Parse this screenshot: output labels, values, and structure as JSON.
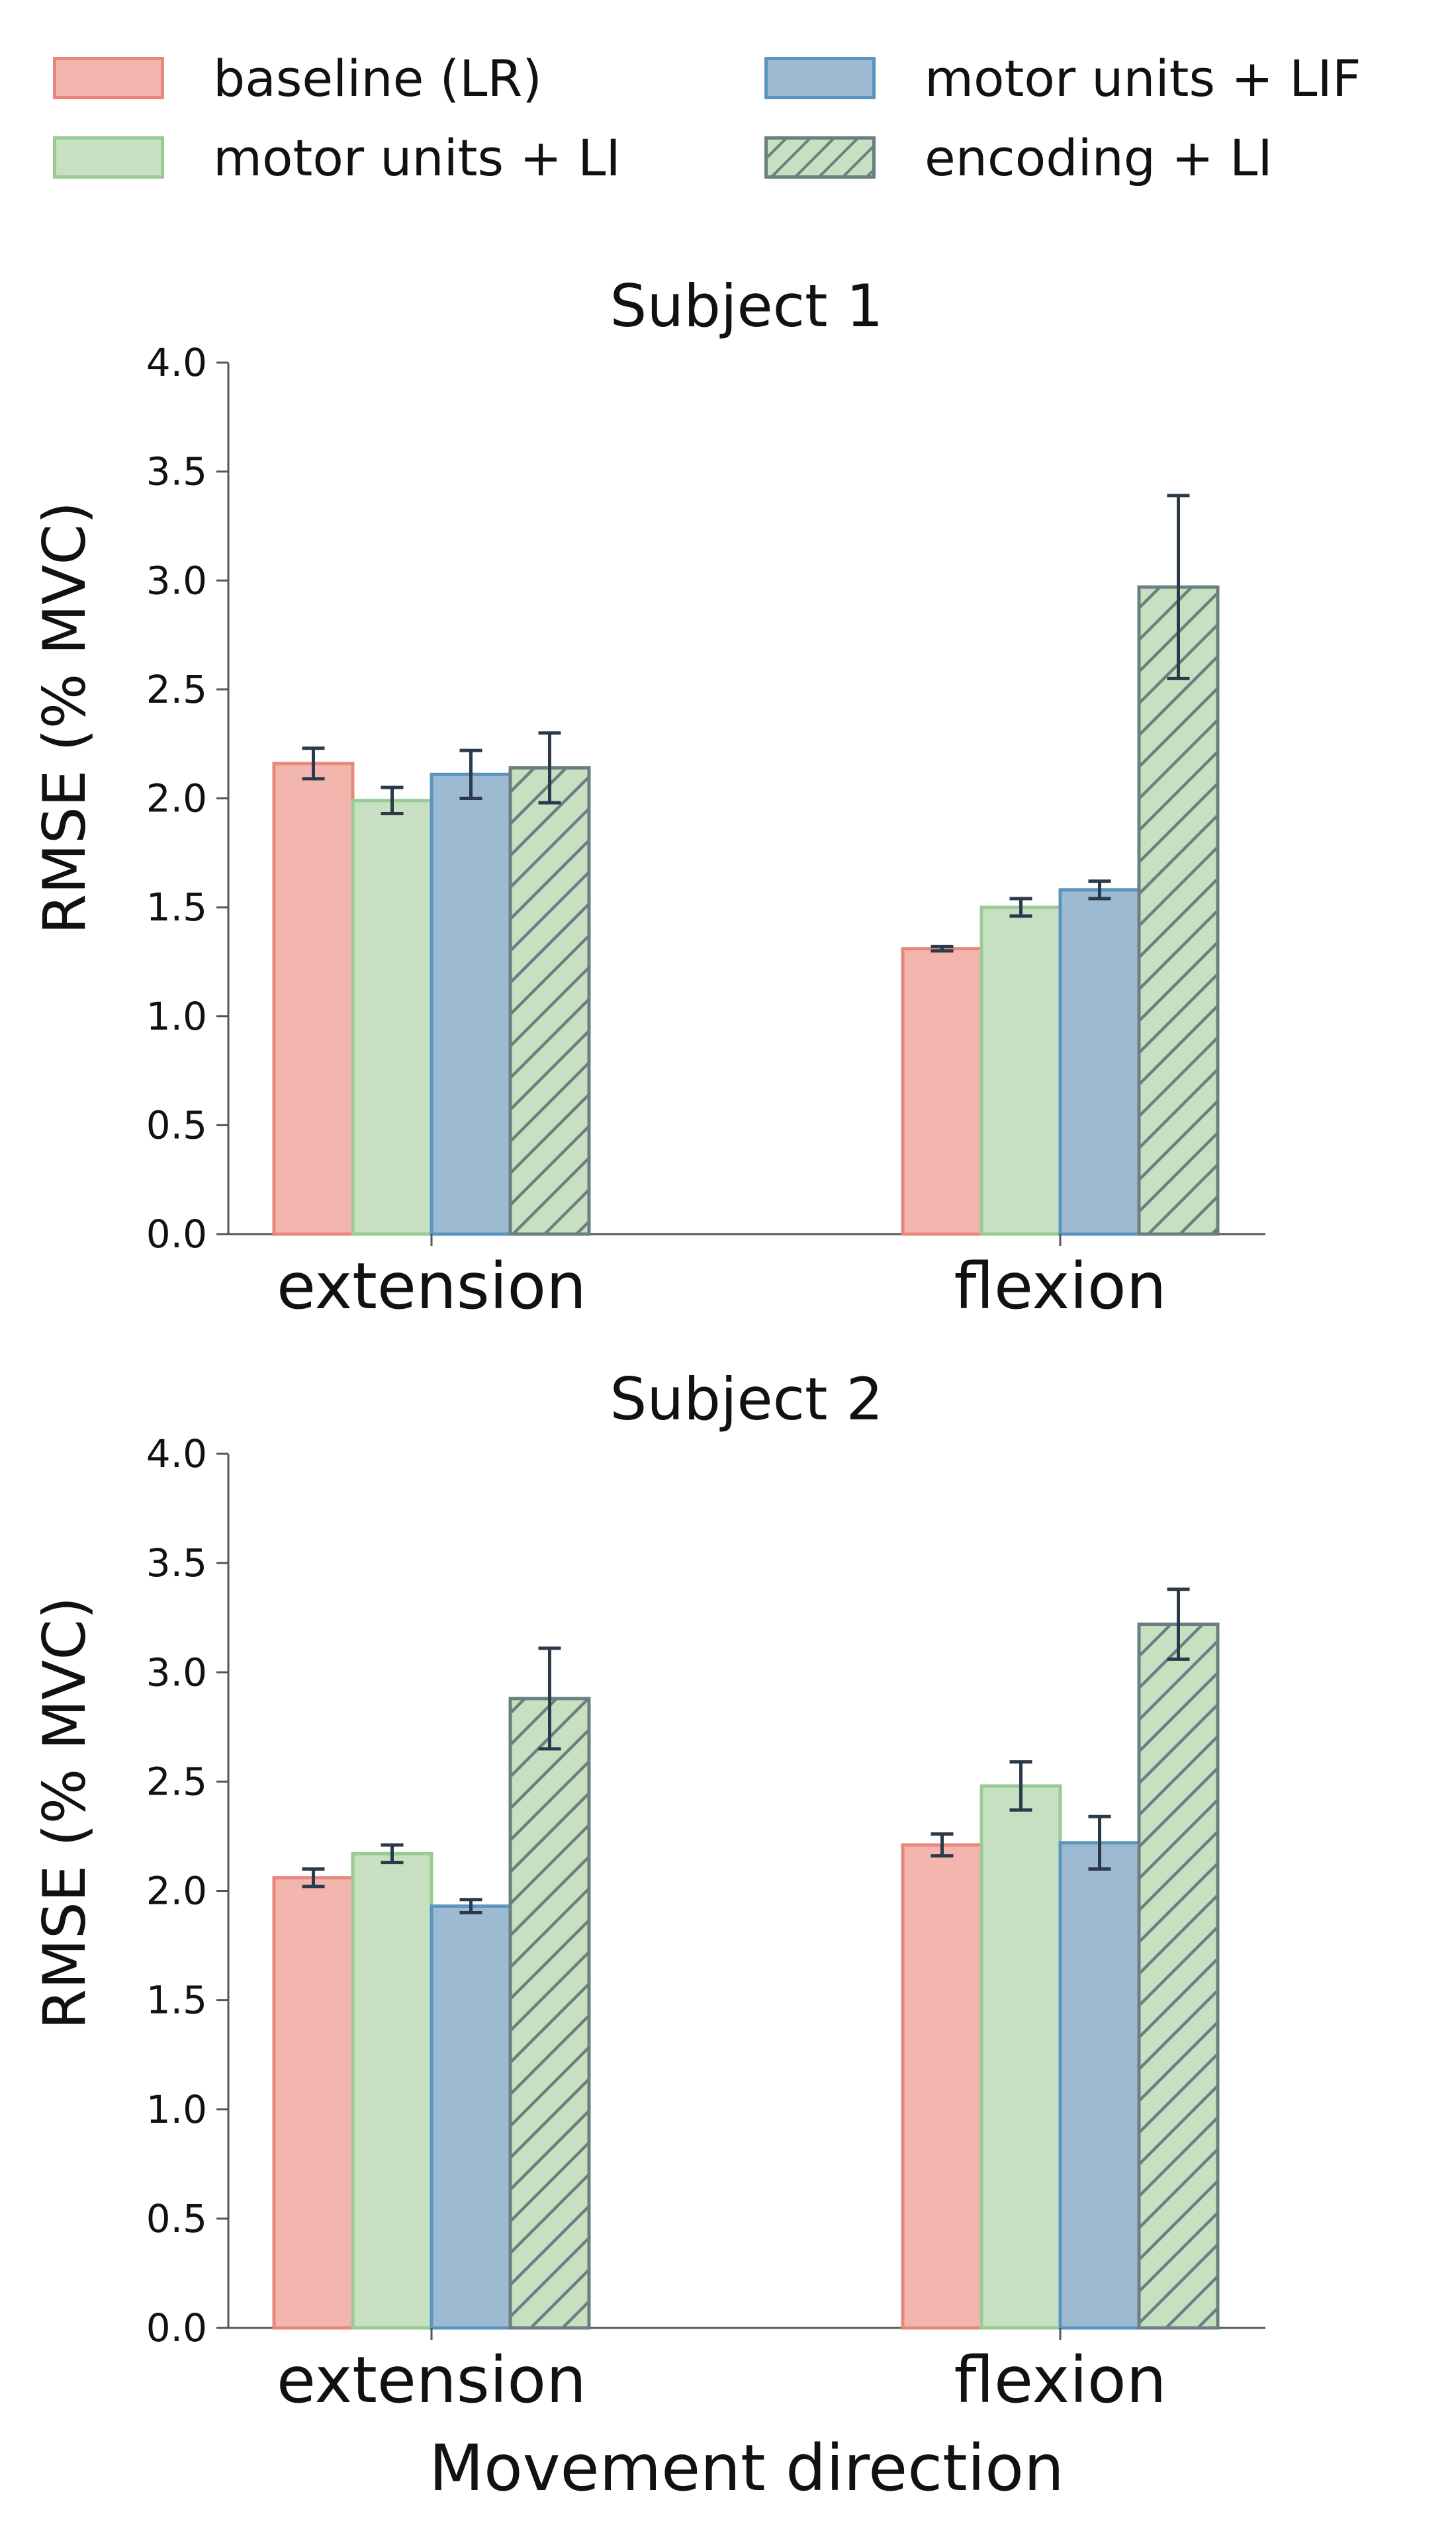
{
  "legend": [
    {
      "label": "baseline (LR)",
      "color": "#F2B6AE",
      "edge": "#E8887C",
      "hatch": false
    },
    {
      "label": "motor units + LIF",
      "color": "#9CBBD3",
      "edge": "#5B95BE",
      "hatch": false
    },
    {
      "label": "motor units + LI",
      "color": "#C6E0C1",
      "edge": "#9BCB94",
      "hatch": false
    },
    {
      "label": "encoding + LI",
      "color": "#C6E0C1",
      "edge": "#6B7F80",
      "hatch": true
    }
  ],
  "xlabel": "Movement direction",
  "chart_data": [
    {
      "type": "bar",
      "title": "Subject 1",
      "ylabel": "RMSE (% MVC)",
      "xlabel": "",
      "ylim": [
        0,
        4.0
      ],
      "yticks": [
        "0.0",
        "0.5",
        "1.0",
        "1.5",
        "2.0",
        "2.5",
        "3.0",
        "3.5",
        "4.0"
      ],
      "categories": [
        "extension",
        "flexion"
      ],
      "series": [
        {
          "name": "baseline (LR)",
          "values": [
            2.16,
            1.31
          ],
          "errors": [
            0.07,
            0.01
          ]
        },
        {
          "name": "motor units + LI",
          "values": [
            1.99,
            1.5
          ],
          "errors": [
            0.06,
            0.04
          ]
        },
        {
          "name": "motor units + LIF",
          "values": [
            2.11,
            1.58
          ],
          "errors": [
            0.11,
            0.04
          ]
        },
        {
          "name": "encoding + LI",
          "values": [
            2.14,
            2.97
          ],
          "errors": [
            0.16,
            0.42
          ]
        }
      ]
    },
    {
      "type": "bar",
      "title": "Subject 2",
      "ylabel": "RMSE (% MVC)",
      "xlabel": "Movement direction",
      "ylim": [
        0,
        4.0
      ],
      "yticks": [
        "0.0",
        "0.5",
        "1.0",
        "1.5",
        "2.0",
        "2.5",
        "3.0",
        "3.5",
        "4.0"
      ],
      "categories": [
        "extension",
        "flexion"
      ],
      "series": [
        {
          "name": "baseline (LR)",
          "values": [
            2.06,
            2.21
          ],
          "errors": [
            0.04,
            0.05
          ]
        },
        {
          "name": "motor units + LI",
          "values": [
            2.17,
            2.48
          ],
          "errors": [
            0.04,
            0.11
          ]
        },
        {
          "name": "motor units + LIF",
          "values": [
            1.93,
            2.22
          ],
          "errors": [
            0.03,
            0.12
          ]
        },
        {
          "name": "encoding + LI",
          "values": [
            2.88,
            3.22
          ],
          "errors": [
            0.23,
            0.16
          ]
        }
      ]
    }
  ]
}
